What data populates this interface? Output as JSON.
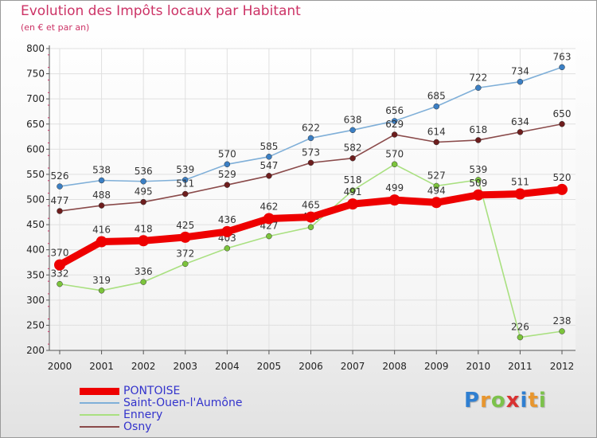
{
  "header": {
    "title": "Evolution des Impôts locaux par Habitant",
    "subtitle": "(en € et par an)"
  },
  "logo": {
    "text": "Proxiti",
    "letters": [
      {
        "ch": "P",
        "color": "#2f7fd1"
      },
      {
        "ch": "r",
        "color": "#e8962e"
      },
      {
        "ch": "o",
        "color": "#7cc24b"
      },
      {
        "ch": "x",
        "color": "#d93232"
      },
      {
        "ch": "i",
        "color": "#2f7fd1"
      },
      {
        "ch": "t",
        "color": "#e8962e"
      },
      {
        "ch": "i",
        "color": "#7cc24b"
      }
    ]
  },
  "colors": {
    "title": "#cc3366",
    "axis_text": "#222222",
    "grid": "#e0e0e0",
    "axis_line": "#555555",
    "tick_marks": "#cc3366",
    "legend_text": "#3333cc"
  },
  "chart_data": {
    "type": "line",
    "title": "Evolution des Impôts locaux par Habitant",
    "subtitle": "(en € et par an)",
    "xlabel": "",
    "ylabel": "",
    "x": [
      "2000",
      "2001",
      "2002",
      "2003",
      "2004",
      "2005",
      "2006",
      "2007",
      "2008",
      "2009",
      "2010",
      "2011",
      "2012"
    ],
    "ylim": [
      200,
      800
    ],
    "yticks": [
      200,
      250,
      300,
      350,
      400,
      450,
      500,
      550,
      600,
      650,
      700,
      750,
      800
    ],
    "grid": true,
    "legend_position": "bottom-left",
    "series": [
      {
        "name": "PONTOISE",
        "color": "#ee0000",
        "marker_color": "#ee0000",
        "emphasis": "thick",
        "values": [
          370,
          416,
          418,
          425,
          436,
          462,
          465,
          491,
          499,
          494,
          509,
          511,
          520
        ],
        "labels": [
          "370",
          "416",
          "418",
          "425",
          "436",
          "462",
          "465",
          "491",
          "499",
          "494",
          "509",
          "511",
          "520"
        ]
      },
      {
        "name": "Saint-Ouen-l'Aumône",
        "color": "#7fafd8",
        "marker_color": "#3b7fc4",
        "values": [
          526,
          538,
          536,
          539,
          570,
          585,
          622,
          638,
          656,
          685,
          722,
          734,
          763
        ],
        "labels": [
          "526",
          "538",
          "536",
          "539",
          "570",
          "585",
          "622",
          "638",
          "656",
          "685",
          "722",
          "734",
          "763"
        ]
      },
      {
        "name": "Ennery",
        "color": "#a9e080",
        "marker_color": "#7cc43c",
        "values": [
          332,
          319,
          336,
          372,
          403,
          427,
          445,
          518,
          570,
          527,
          539,
          226,
          238
        ],
        "labels": [
          "332",
          "319",
          "336",
          "372",
          "403",
          "427",
          "445",
          "518",
          "570",
          "527",
          "539",
          "226",
          "238"
        ]
      },
      {
        "name": "Osny",
        "color": "#8a4a4a",
        "marker_color": "#6e1e1e",
        "values": [
          477,
          488,
          495,
          511,
          529,
          547,
          573,
          582,
          629,
          614,
          618,
          634,
          650
        ],
        "labels": [
          "477",
          "488",
          "495",
          "511",
          "529",
          "547",
          "573",
          "582",
          "629",
          "614",
          "618",
          "634",
          "650"
        ]
      }
    ]
  }
}
